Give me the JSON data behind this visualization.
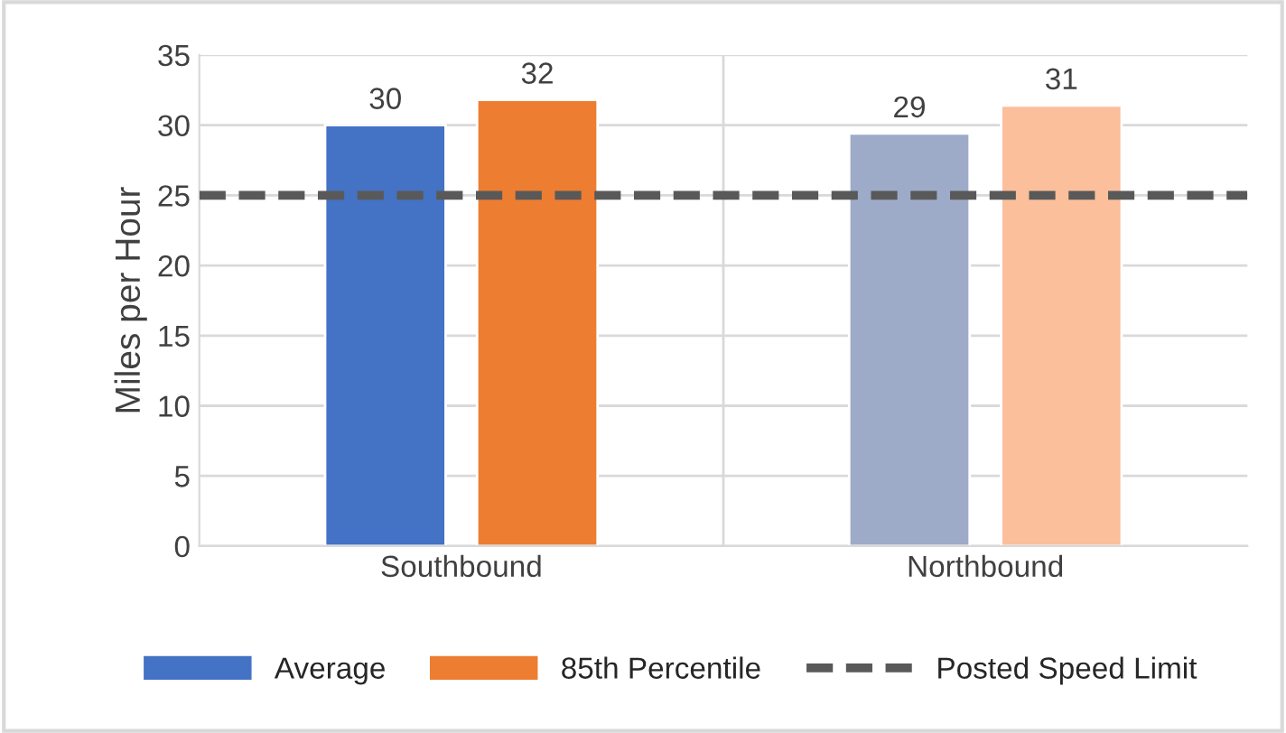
{
  "chart_data": {
    "type": "bar",
    "ylabel": "Miles per Hour",
    "categories": [
      "Southbound",
      "Northbound"
    ],
    "series": [
      {
        "name": "Average",
        "color": "#4472c4",
        "colors": [
          "#4472c4",
          "#9dabc9"
        ],
        "values": [
          30,
          29.4
        ],
        "value_labels": [
          "30",
          "29"
        ]
      },
      {
        "name": "85th Percentile",
        "color": "#ed7d31",
        "colors": [
          "#ed7d31",
          "#fbbf9b"
        ],
        "values": [
          31.8,
          31.4
        ],
        "value_labels": [
          "32",
          "31"
        ]
      }
    ],
    "ref_lines": [
      {
        "axis": "y",
        "value": 25,
        "label": "Posted Speed Limit",
        "color": "#595959",
        "line_style": "dashed"
      }
    ],
    "ylim": [
      0,
      35
    ],
    "yticks": [
      0,
      5,
      10,
      15,
      20,
      25,
      30,
      35
    ],
    "grid": "y",
    "legend": "bottom"
  }
}
